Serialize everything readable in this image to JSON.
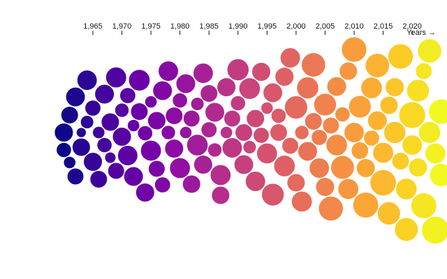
{
  "chart_data": {
    "type": "beeswarm",
    "x_label": "Years →",
    "xlim": [
      1949,
      2026
    ],
    "xticks": [
      {
        "value": 1965,
        "label": "1,965"
      },
      {
        "value": 1970,
        "label": "1,970"
      },
      {
        "value": 1975,
        "label": "1,975"
      },
      {
        "value": 1980,
        "label": "1,980"
      },
      {
        "value": 1985,
        "label": "1,985"
      },
      {
        "value": 1990,
        "label": "1,990"
      },
      {
        "value": 1995,
        "label": "1,995"
      },
      {
        "value": 2000,
        "label": "2,000"
      },
      {
        "value": 2005,
        "label": "2,005"
      },
      {
        "value": 2010,
        "label": "2,010"
      },
      {
        "value": 2015,
        "label": "2,015"
      },
      {
        "value": 2020,
        "label": "2,020"
      }
    ],
    "colormap": "plasma",
    "x": [
      1960,
      1960,
      1961,
      1961,
      1962,
      1962,
      1963,
      1963,
      1964,
      1964,
      1965,
      1965,
      1966,
      1966,
      1967,
      1967,
      1968,
      1968,
      1969,
      1969,
      1970,
      1970,
      1971,
      1971,
      1972,
      1972,
      1973,
      1973,
      1974,
      1974,
      1975,
      1975,
      1976,
      1976,
      1977,
      1977,
      1978,
      1978,
      1979,
      1979,
      1980,
      1980,
      1981,
      1981,
      1982,
      1982,
      1983,
      1983,
      1984,
      1984,
      1985,
      1985,
      1986,
      1986,
      1987,
      1987,
      1988,
      1988,
      1989,
      1989,
      1990,
      1990,
      1991,
      1991,
      1992,
      1992,
      1993,
      1993,
      1994,
      1994,
      1995,
      1995,
      1996,
      1996,
      1997,
      1997,
      1998,
      1998,
      1999,
      1999,
      2000,
      2000,
      2001,
      2001,
      2002,
      2002,
      2003,
      2003,
      2004,
      2004,
      2005,
      2005,
      2006,
      2006,
      2007,
      2007,
      2008,
      2008,
      2009,
      2009,
      2010,
      2010,
      2011,
      2011,
      2012,
      2012,
      2013,
      2013,
      2014,
      2014,
      2015,
      2015,
      2016,
      2016,
      2017,
      2017,
      2018,
      2018,
      2019,
      2019,
      2020,
      2020,
      2021,
      2021,
      2022,
      2022,
      2023,
      2023,
      2024,
      2024,
      2025,
      2025
    ],
    "sizes": [
      140,
      90,
      120,
      60,
      150,
      110,
      40,
      130,
      160,
      70,
      100,
      140,
      60,
      120,
      150,
      90,
      130,
      50,
      110,
      170,
      140,
      80,
      160,
      100,
      60,
      150,
      120,
      180,
      90,
      140,
      170,
      60,
      130,
      110,
      150,
      100,
      80,
      160,
      140,
      120,
      170,
      90,
      60,
      150,
      130,
      110,
      180,
      70,
      140,
      160,
      100,
      120,
      150,
      80,
      170,
      130,
      60,
      140,
      160,
      110,
      190,
      90,
      120,
      150,
      70,
      180,
      130,
      160,
      100,
      140,
      170,
      60,
      150,
      200,
      120,
      90,
      180,
      140,
      110,
      160,
      210,
      130,
      80,
      170,
      150,
      190,
      120,
      230,
      100,
      160,
      200,
      140,
      240,
      110,
      180,
      150,
      90,
      220,
      170,
      130,
      250,
      160,
      120,
      200,
      140,
      260,
      180,
      100,
      230,
      150,
      270,
      170,
      130,
      210,
      190,
      140,
      250,
      120,
      180,
      220,
      160,
      280,
      200,
      140,
      260,
      110,
      230,
      190,
      300,
      170,
      250,
      210
    ]
  }
}
